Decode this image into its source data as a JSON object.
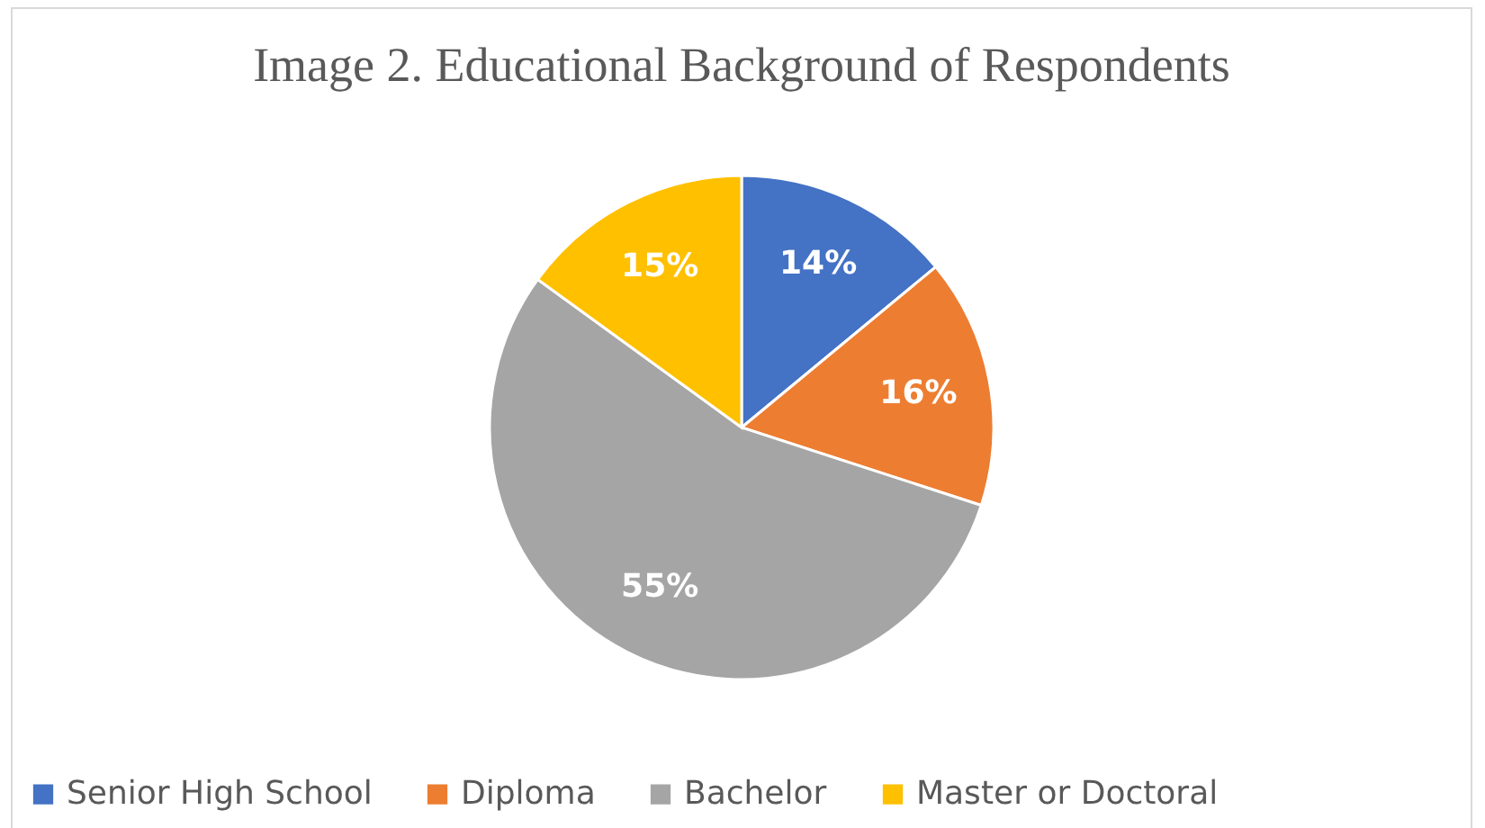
{
  "chart_data": {
    "type": "pie",
    "title": "Image 2. Educational Background of Respondents",
    "categories": [
      "Senior High School",
      "Diploma",
      "Bachelor",
      "Master or Doctoral"
    ],
    "values": [
      14,
      16,
      55,
      15
    ],
    "value_labels": [
      "14%",
      "16%",
      "55%",
      "15%"
    ],
    "colors": [
      "#4472c4",
      "#ed7d31",
      "#a5a5a5",
      "#ffc000"
    ],
    "legend": "bottom"
  }
}
